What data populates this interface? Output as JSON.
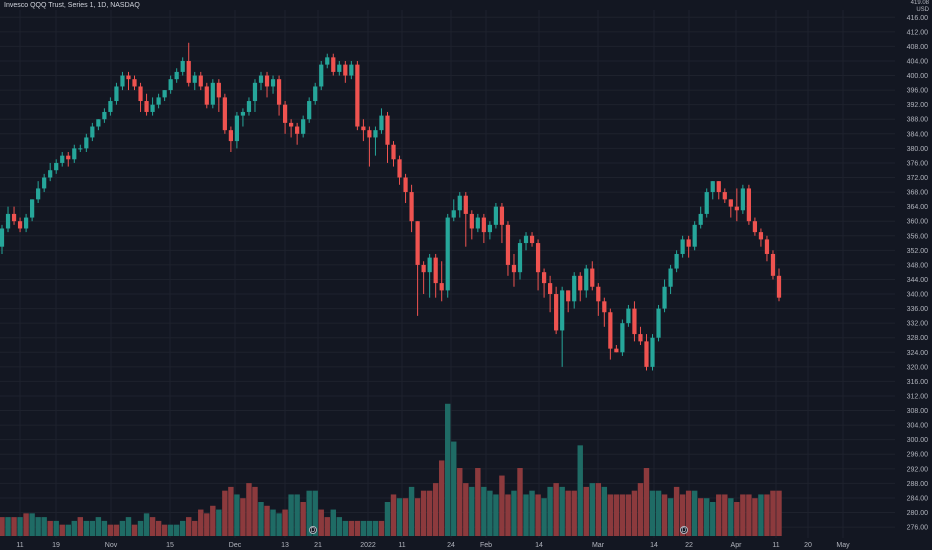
{
  "header": {
    "title": "Invesco QQQ Trust, Series 1, 1D, NASDAQ"
  },
  "axis": {
    "currency_label": "USD",
    "top_label_partial": "419.08"
  },
  "markers": [
    {
      "label": "D",
      "after_x_label": "13"
    },
    {
      "label": "D",
      "after_x_label": "22"
    }
  ],
  "colors": {
    "background": "#131722",
    "up": "#26a69a",
    "down": "#ef5350",
    "up_volume": "#1f6b65",
    "down_volume": "#8c3a3d",
    "grid": "#1e222d",
    "axis_text": "#b2b5be"
  },
  "chart_data": {
    "type": "candlestick",
    "title": "Invesco QQQ Trust, Series 1, 1D, NASDAQ",
    "ylim": [
      273,
      418
    ],
    "y_ticks": [
      276,
      280,
      284,
      288,
      292,
      296,
      300,
      304,
      308,
      312,
      316,
      320,
      324,
      328,
      332,
      336,
      340,
      344,
      348,
      352,
      356,
      360,
      364,
      368,
      372,
      376,
      380,
      384,
      388,
      392,
      396,
      400,
      404,
      408,
      412,
      416
    ],
    "x_tick_labels": [
      "11",
      "19",
      "Nov",
      "15",
      "Dec",
      "13",
      "21",
      "2022",
      "11",
      "24",
      "Feb",
      "14",
      "Mar",
      "14",
      "22",
      "Apr",
      "11",
      "20",
      "May"
    ],
    "grid": true,
    "candles": [
      [
        353,
        358,
        351,
        359
      ],
      [
        358,
        362,
        357,
        364
      ],
      [
        362,
        360,
        359,
        364
      ],
      [
        360,
        358,
        357,
        361
      ],
      [
        358,
        361,
        357,
        362
      ],
      [
        361,
        366,
        360,
        366
      ],
      [
        366,
        369,
        365,
        371
      ],
      [
        369,
        372,
        368,
        373
      ],
      [
        372,
        374,
        371,
        376
      ],
      [
        374,
        376,
        373,
        377
      ],
      [
        376,
        378,
        375,
        379
      ],
      [
        378,
        377,
        375,
        379
      ],
      [
        377,
        380,
        376,
        381
      ],
      [
        380,
        380,
        379,
        381
      ],
      [
        380,
        383,
        379,
        384
      ],
      [
        383,
        386,
        382,
        387
      ],
      [
        386,
        388,
        385,
        388
      ],
      [
        388,
        390,
        387,
        391
      ],
      [
        390,
        393,
        389,
        394
      ],
      [
        393,
        397,
        392,
        398
      ],
      [
        397,
        400,
        396,
        401
      ],
      [
        400,
        399,
        396,
        401
      ],
      [
        399,
        397,
        396,
        400
      ],
      [
        397,
        393,
        390,
        398
      ],
      [
        393,
        390,
        389,
        395
      ],
      [
        390,
        392,
        389,
        394
      ],
      [
        392,
        394,
        391,
        395
      ],
      [
        394,
        396,
        393,
        396
      ],
      [
        396,
        399,
        395,
        400
      ],
      [
        399,
        401,
        398,
        402
      ],
      [
        401,
        404,
        400,
        405
      ],
      [
        404,
        398,
        397,
        409
      ],
      [
        398,
        400,
        396,
        401
      ],
      [
        400,
        397,
        396,
        401
      ],
      [
        397,
        392,
        391,
        398
      ],
      [
        392,
        398,
        391,
        399
      ],
      [
        398,
        394,
        390,
        399
      ],
      [
        394,
        385,
        384,
        395
      ],
      [
        385,
        382,
        379,
        386
      ],
      [
        382,
        389,
        380,
        390
      ],
      [
        389,
        390,
        386,
        391
      ],
      [
        390,
        393,
        389,
        394
      ],
      [
        393,
        398,
        390,
        399
      ],
      [
        398,
        400,
        396,
        401
      ],
      [
        400,
        397,
        394,
        401
      ],
      [
        397,
        399,
        395,
        400
      ],
      [
        399,
        392,
        389,
        400
      ],
      [
        392,
        387,
        384,
        393
      ],
      [
        387,
        386,
        383,
        388
      ],
      [
        386,
        384,
        381,
        387
      ],
      [
        384,
        388,
        383,
        389
      ],
      [
        388,
        393,
        387,
        394
      ],
      [
        393,
        397,
        392,
        398
      ],
      [
        397,
        403,
        396,
        404
      ],
      [
        403,
        405,
        402,
        406
      ],
      [
        405,
        401,
        400,
        406
      ],
      [
        401,
        403,
        400,
        404
      ],
      [
        403,
        400,
        398,
        404
      ],
      [
        400,
        403,
        399,
        404
      ],
      [
        403,
        386,
        385,
        404
      ],
      [
        386,
        385,
        382,
        388
      ],
      [
        385,
        383,
        375,
        386
      ],
      [
        383,
        385,
        378,
        386
      ],
      [
        385,
        389,
        384,
        391
      ],
      [
        389,
        381,
        376,
        390
      ],
      [
        381,
        377,
        375,
        382
      ],
      [
        377,
        372,
        370,
        378
      ],
      [
        372,
        368,
        365,
        373
      ],
      [
        368,
        360,
        357,
        370
      ],
      [
        360,
        348,
        334,
        360
      ],
      [
        348,
        346,
        340,
        349
      ],
      [
        346,
        350,
        339,
        351
      ],
      [
        350,
        343,
        339,
        351
      ],
      [
        343,
        341,
        338,
        349
      ],
      [
        341,
        361,
        339,
        362
      ],
      [
        361,
        363,
        360,
        366
      ],
      [
        363,
        367,
        361,
        368
      ],
      [
        367,
        362,
        353,
        368
      ],
      [
        362,
        358,
        355,
        363
      ],
      [
        358,
        361,
        357,
        362
      ],
      [
        361,
        357,
        354,
        362
      ],
      [
        357,
        359,
        355,
        360
      ],
      [
        359,
        364,
        358,
        365
      ],
      [
        364,
        359,
        354,
        365
      ],
      [
        359,
        348,
        345,
        360
      ],
      [
        348,
        346,
        342,
        351
      ],
      [
        346,
        354,
        344,
        355
      ],
      [
        354,
        356,
        352,
        357
      ],
      [
        356,
        354,
        353,
        357
      ],
      [
        354,
        346,
        341,
        355
      ],
      [
        346,
        343,
        339,
        347
      ],
      [
        343,
        340,
        335,
        345
      ],
      [
        340,
        330,
        329,
        342
      ],
      [
        330,
        341,
        320,
        342
      ],
      [
        341,
        338,
        335,
        341
      ],
      [
        338,
        345,
        336,
        346
      ],
      [
        345,
        341,
        338,
        346
      ],
      [
        341,
        347,
        339,
        348
      ],
      [
        347,
        342,
        341,
        349
      ],
      [
        342,
        338,
        334,
        343
      ],
      [
        338,
        335,
        331,
        339
      ],
      [
        335,
        325,
        322,
        336
      ],
      [
        325,
        324,
        324,
        326
      ],
      [
        324,
        332,
        323,
        333
      ],
      [
        332,
        336,
        331,
        337
      ],
      [
        336,
        329,
        327,
        338
      ],
      [
        329,
        327,
        326,
        331
      ],
      [
        327,
        320,
        319,
        329
      ],
      [
        320,
        328,
        319,
        329
      ],
      [
        328,
        336,
        327,
        337
      ],
      [
        336,
        342,
        335,
        344
      ],
      [
        342,
        347,
        340,
        348
      ],
      [
        347,
        351,
        346,
        352
      ],
      [
        351,
        355,
        350,
        356
      ],
      [
        355,
        353,
        350,
        356
      ],
      [
        353,
        359,
        352,
        360
      ],
      [
        359,
        362,
        358,
        364
      ],
      [
        362,
        368,
        361,
        369
      ],
      [
        368,
        371,
        366,
        371
      ],
      [
        371,
        368,
        366,
        371
      ],
      [
        368,
        366,
        365,
        369
      ],
      [
        366,
        364,
        361,
        366
      ],
      [
        364,
        363,
        360,
        369
      ],
      [
        363,
        369,
        362,
        370
      ],
      [
        369,
        360,
        359,
        370
      ],
      [
        360,
        357,
        356,
        361
      ],
      [
        357,
        355,
        353,
        358
      ],
      [
        355,
        351,
        349,
        356
      ],
      [
        351,
        345,
        344,
        352
      ],
      [
        345,
        339,
        338,
        347
      ]
    ],
    "volume": [
      [
        5,
        "down"
      ],
      [
        5,
        "up"
      ],
      [
        5,
        "down"
      ],
      [
        5,
        "up"
      ],
      [
        6,
        "down"
      ],
      [
        6,
        "up"
      ],
      [
        5,
        "up"
      ],
      [
        5,
        "up"
      ],
      [
        4,
        "down"
      ],
      [
        4,
        "up"
      ],
      [
        3,
        "down"
      ],
      [
        3,
        "up"
      ],
      [
        4,
        "up"
      ],
      [
        5,
        "down"
      ],
      [
        4,
        "up"
      ],
      [
        4,
        "up"
      ],
      [
        5,
        "up"
      ],
      [
        4,
        "up"
      ],
      [
        3,
        "down"
      ],
      [
        3,
        "down"
      ],
      [
        4,
        "up"
      ],
      [
        5,
        "up"
      ],
      [
        3,
        "down"
      ],
      [
        4,
        "up"
      ],
      [
        6,
        "up"
      ],
      [
        5,
        "down"
      ],
      [
        4,
        "down"
      ],
      [
        3,
        "down"
      ],
      [
        3,
        "up"
      ],
      [
        3,
        "up"
      ],
      [
        4,
        "up"
      ],
      [
        5,
        "down"
      ],
      [
        4,
        "down"
      ],
      [
        7,
        "down"
      ],
      [
        6,
        "down"
      ],
      [
        8,
        "down"
      ],
      [
        7,
        "up"
      ],
      [
        12,
        "down"
      ],
      [
        13,
        "down"
      ],
      [
        11,
        "up"
      ],
      [
        10,
        "down"
      ],
      [
        14,
        "down"
      ],
      [
        13,
        "down"
      ],
      [
        9,
        "up"
      ],
      [
        8,
        "down"
      ],
      [
        7,
        "up"
      ],
      [
        6,
        "up"
      ],
      [
        7,
        "down"
      ],
      [
        11,
        "up"
      ],
      [
        11,
        "up"
      ],
      [
        9,
        "down"
      ],
      [
        12,
        "up"
      ],
      [
        12,
        "up"
      ],
      [
        7,
        "down"
      ],
      [
        5,
        "down"
      ],
      [
        7,
        "up"
      ],
      [
        5,
        "up"
      ],
      [
        4,
        "up"
      ],
      [
        4,
        "down"
      ],
      [
        4,
        "down"
      ],
      [
        4,
        "up"
      ],
      [
        4,
        "up"
      ],
      [
        4,
        "up"
      ],
      [
        4,
        "down"
      ],
      [
        9,
        "up"
      ],
      [
        11,
        "down"
      ],
      [
        10,
        "up"
      ],
      [
        10,
        "down"
      ],
      [
        13,
        "up"
      ],
      [
        10,
        "down"
      ],
      [
        12,
        "down"
      ],
      [
        12,
        "down"
      ],
      [
        14,
        "down"
      ],
      [
        20,
        "down"
      ],
      [
        35,
        "up"
      ],
      [
        25,
        "up"
      ],
      [
        18,
        "down"
      ],
      [
        14,
        "down"
      ],
      [
        13,
        "up"
      ],
      [
        18,
        "down"
      ],
      [
        13,
        "up"
      ],
      [
        12,
        "up"
      ],
      [
        11,
        "up"
      ],
      [
        16,
        "down"
      ],
      [
        11,
        "down"
      ],
      [
        12,
        "up"
      ],
      [
        18,
        "down"
      ],
      [
        11,
        "up"
      ],
      [
        12,
        "up"
      ],
      [
        11,
        "down"
      ],
      [
        10,
        "up"
      ],
      [
        13,
        "up"
      ],
      [
        14,
        "down"
      ],
      [
        13,
        "up"
      ],
      [
        12,
        "down"
      ],
      [
        12,
        "down"
      ],
      [
        24,
        "up"
      ],
      [
        13,
        "down"
      ],
      [
        14,
        "up"
      ],
      [
        14,
        "down"
      ],
      [
        13,
        "up"
      ],
      [
        11,
        "down"
      ],
      [
        11,
        "down"
      ],
      [
        11,
        "down"
      ],
      [
        11,
        "down"
      ],
      [
        12,
        "down"
      ],
      [
        14,
        "down"
      ],
      [
        18,
        "down"
      ],
      [
        12,
        "up"
      ],
      [
        12,
        "up"
      ],
      [
        11,
        "down"
      ],
      [
        10,
        "up"
      ],
      [
        13,
        "down"
      ],
      [
        11,
        "down"
      ],
      [
        12,
        "down"
      ],
      [
        12,
        "up"
      ],
      [
        10,
        "down"
      ],
      [
        10,
        "up"
      ],
      [
        9,
        "up"
      ],
      [
        11,
        "down"
      ],
      [
        11,
        "down"
      ],
      [
        10,
        "up"
      ],
      [
        9,
        "down"
      ],
      [
        11,
        "down"
      ],
      [
        11,
        "down"
      ],
      [
        10,
        "down"
      ],
      [
        11,
        "up"
      ],
      [
        11,
        "down"
      ],
      [
        12,
        "down"
      ],
      [
        12,
        "down"
      ]
    ],
    "volume_scale_max": 36
  }
}
